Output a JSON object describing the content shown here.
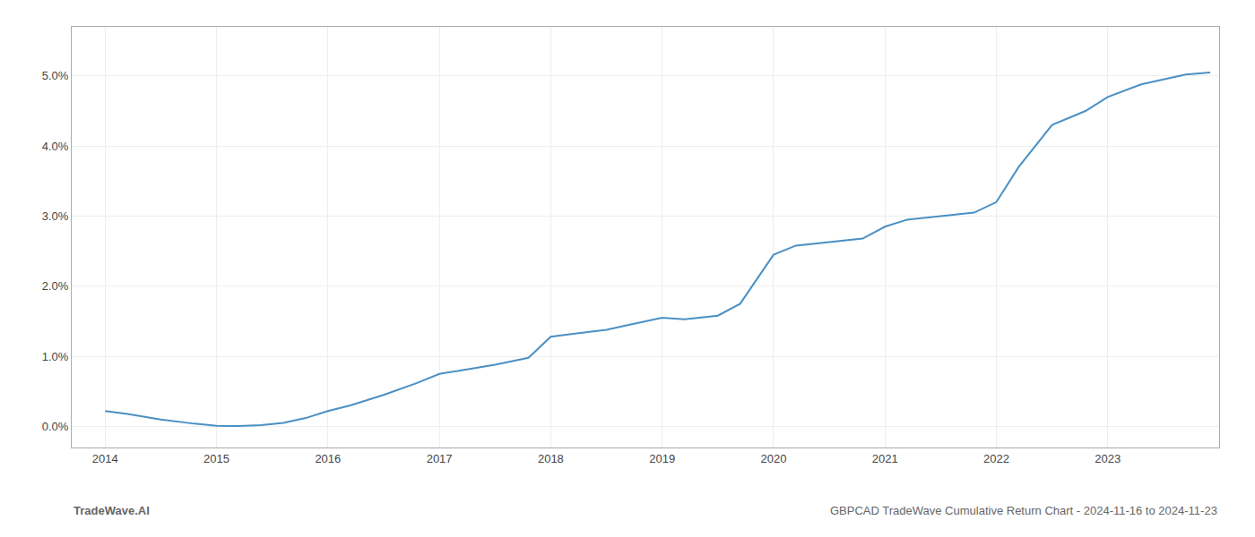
{
  "chart_data": {
    "type": "line",
    "x": [
      2014.0,
      2014.2,
      2014.5,
      2014.8,
      2015.0,
      2015.1,
      2015.2,
      2015.4,
      2015.6,
      2015.8,
      2016.0,
      2016.2,
      2016.5,
      2016.8,
      2017.0,
      2017.2,
      2017.5,
      2017.8,
      2018.0,
      2018.2,
      2018.5,
      2018.7,
      2019.0,
      2019.2,
      2019.5,
      2019.7,
      2020.0,
      2020.2,
      2020.5,
      2020.8,
      2021.0,
      2021.2,
      2021.5,
      2021.8,
      2022.0,
      2022.2,
      2022.5,
      2022.8,
      2023.0,
      2023.3,
      2023.7,
      2023.92
    ],
    "values": [
      0.0022,
      0.0018,
      0.001,
      0.0004,
      0.0001,
      8e-05,
      5e-05,
      0.0002,
      0.0005,
      0.0012,
      0.0022,
      0.003,
      0.0045,
      0.0062,
      0.0075,
      0.008,
      0.0088,
      0.0098,
      0.0128,
      0.0132,
      0.0138,
      0.0145,
      0.0155,
      0.0153,
      0.0158,
      0.0175,
      0.0245,
      0.0258,
      0.0263,
      0.0268,
      0.0285,
      0.0295,
      0.03,
      0.0305,
      0.032,
      0.037,
      0.043,
      0.045,
      0.047,
      0.0488,
      0.0502,
      0.0505
    ],
    "color": "#4a90c4",
    "xlim": [
      2013.7,
      2024.0
    ],
    "ylim": [
      -0.003,
      0.057
    ],
    "xticks": [
      2014,
      2015,
      2016,
      2017,
      2018,
      2019,
      2020,
      2021,
      2022,
      2023
    ],
    "yticks": [
      {
        "value": 0.0,
        "label": "0.0%"
      },
      {
        "value": 0.01,
        "label": "1.0%"
      },
      {
        "value": 0.02,
        "label": "2.0%"
      },
      {
        "value": 0.03,
        "label": "3.0%"
      },
      {
        "value": 0.04,
        "label": "4.0%"
      },
      {
        "value": 0.05,
        "label": "5.0%"
      }
    ],
    "grid": true,
    "annotations": [
      "TradeWave.AI",
      "GBPCAD TradeWave Cumulative Return Chart - 2024-11-16 to 2024-11-23"
    ]
  }
}
